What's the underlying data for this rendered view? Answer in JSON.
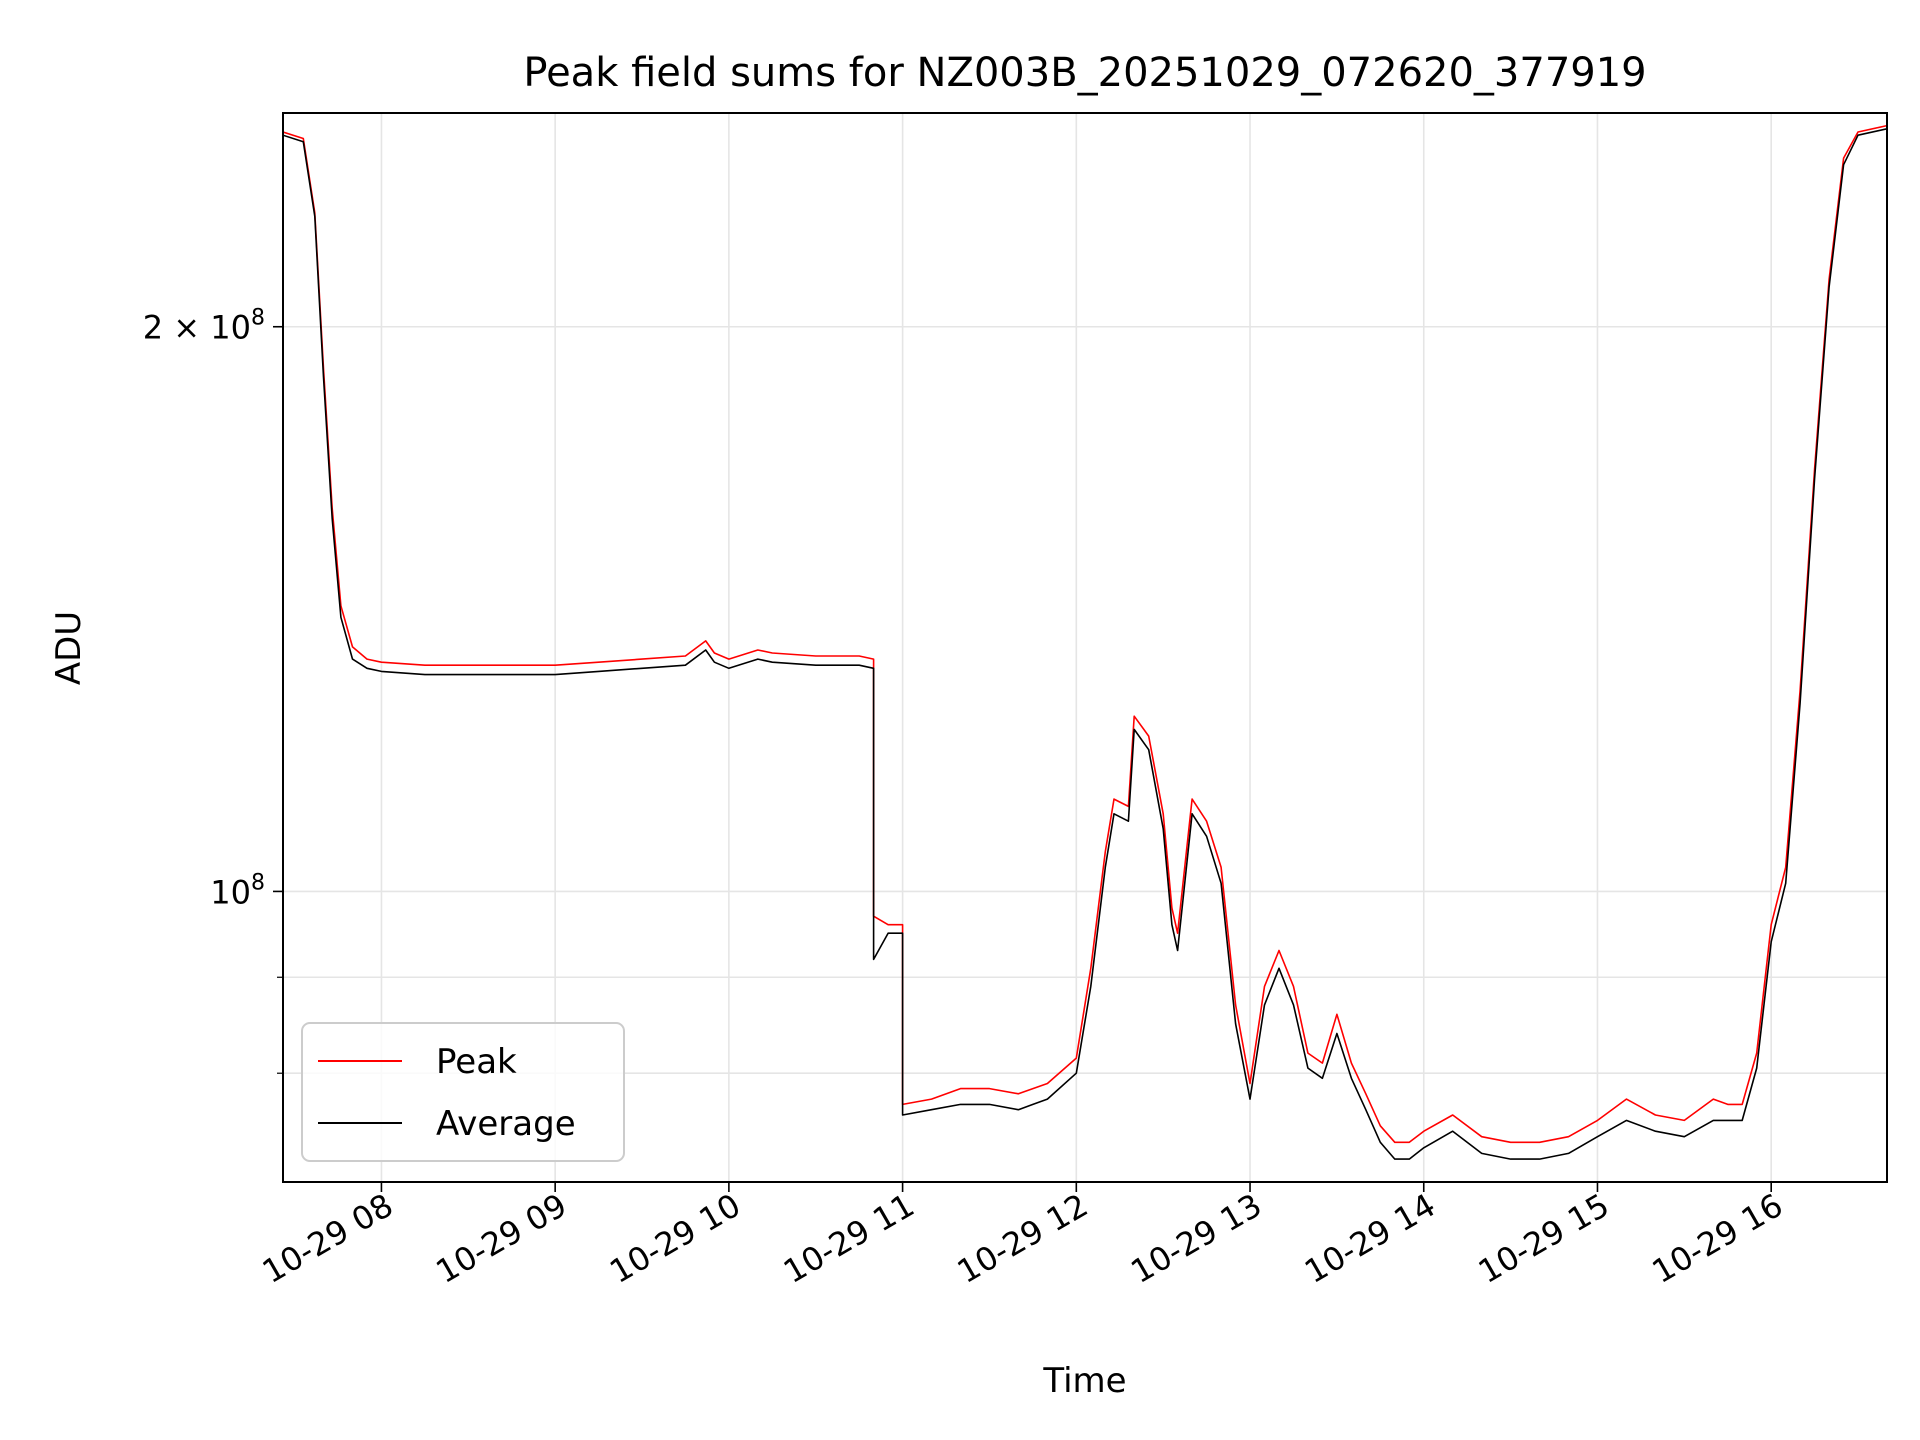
{
  "chart_data": {
    "type": "line",
    "title": "Peak field sums for NZ003B_20251029_072620_377919",
    "xlabel": "Time",
    "ylabel": "ADU",
    "x_tick_labels": [
      "10-29 08",
      "10-29 09",
      "10-29 10",
      "10-29 11",
      "10-29 12",
      "10-29 13",
      "10-29 14",
      "10-29 15",
      "10-29 16"
    ],
    "xlim": [
      "2025-10-29 07:26",
      "2025-10-29 16:40"
    ],
    "y_scale": "log",
    "ylim": [
      70000000,
      260000000
    ],
    "y_tick_labels": [
      {
        "value": 100000000,
        "mantissa": "",
        "base": "10",
        "exp": "8"
      },
      {
        "value": 200000000,
        "mantissa": "2 × ",
        "base": "10",
        "exp": "8"
      }
    ],
    "y_minor_ticks": [
      80000000,
      90000000
    ],
    "grid": true,
    "legend_position": "lower-left",
    "series": [
      {
        "name": "Peak",
        "color": "#ff0000",
        "x": [
          "07:26",
          "07:33",
          "07:37",
          "07:40",
          "07:43",
          "07:46",
          "07:50",
          "07:55",
          "08:00",
          "08:15",
          "08:30",
          "08:45",
          "09:00",
          "09:15",
          "09:30",
          "09:45",
          "09:52",
          "09:55",
          "10:00",
          "10:10",
          "10:15",
          "10:30",
          "10:45",
          "10:50",
          "10:50",
          "10:55",
          "11:00",
          "11:00",
          "11:10",
          "11:20",
          "11:30",
          "11:40",
          "11:45",
          "11:50",
          "12:00",
          "12:05",
          "12:10",
          "12:13",
          "12:18",
          "12:20",
          "12:25",
          "12:30",
          "12:33",
          "12:35",
          "12:40",
          "12:45",
          "12:50",
          "12:55",
          "13:00",
          "13:05",
          "13:10",
          "13:15",
          "13:20",
          "13:25",
          "13:30",
          "13:35",
          "13:40",
          "13:45",
          "13:50",
          "13:55",
          "14:00",
          "14:10",
          "14:20",
          "14:30",
          "14:40",
          "14:50",
          "15:00",
          "15:10",
          "15:20",
          "15:30",
          "15:40",
          "15:45",
          "15:50",
          "15:55",
          "16:00",
          "16:05",
          "16:10",
          "16:15",
          "16:20",
          "16:25",
          "16:30",
          "16:40"
        ],
        "y": [
          254000000,
          252000000,
          230000000,
          190000000,
          160000000,
          142000000,
          135000000,
          133000000,
          132500000,
          132000000,
          132000000,
          132000000,
          132000000,
          132500000,
          133000000,
          133500000,
          136000000,
          134000000,
          133000000,
          134500000,
          134000000,
          133500000,
          133500000,
          133000000,
          97000000,
          96000000,
          96000000,
          77000000,
          77500000,
          78500000,
          78500000,
          78000000,
          78500000,
          79000000,
          81500000,
          91000000,
          105000000,
          112000000,
          111000000,
          124000000,
          121000000,
          110000000,
          98000000,
          95000000,
          112000000,
          109000000,
          103000000,
          87000000,
          79000000,
          89000000,
          93000000,
          89000000,
          82000000,
          81000000,
          86000000,
          81000000,
          78000000,
          75000000,
          73500000,
          73500000,
          74500000,
          76000000,
          74000000,
          73500000,
          73500000,
          74000000,
          75500000,
          77500000,
          76000000,
          75500000,
          77500000,
          77000000,
          77000000,
          82000000,
          96000000,
          103000000,
          128000000,
          168000000,
          212000000,
          246000000,
          254000000,
          256000000
        ]
      },
      {
        "name": "Average",
        "color": "#000000",
        "x": [
          "07:26",
          "07:33",
          "07:37",
          "07:40",
          "07:43",
          "07:46",
          "07:50",
          "07:55",
          "08:00",
          "08:15",
          "08:30",
          "08:45",
          "09:00",
          "09:15",
          "09:30",
          "09:45",
          "09:52",
          "09:55",
          "10:00",
          "10:10",
          "10:15",
          "10:30",
          "10:45",
          "10:50",
          "10:50",
          "10:55",
          "11:00",
          "11:00",
          "11:10",
          "11:20",
          "11:30",
          "11:40",
          "11:45",
          "11:50",
          "12:00",
          "12:05",
          "12:10",
          "12:13",
          "12:18",
          "12:20",
          "12:25",
          "12:30",
          "12:33",
          "12:35",
          "12:40",
          "12:45",
          "12:50",
          "12:55",
          "13:00",
          "13:05",
          "13:10",
          "13:15",
          "13:20",
          "13:25",
          "13:30",
          "13:35",
          "13:40",
          "13:45",
          "13:50",
          "13:55",
          "14:00",
          "14:10",
          "14:20",
          "14:30",
          "14:40",
          "14:50",
          "15:00",
          "15:10",
          "15:20",
          "15:30",
          "15:40",
          "15:45",
          "15:50",
          "15:55",
          "16:00",
          "16:05",
          "16:10",
          "16:15",
          "16:20",
          "16:25",
          "16:30",
          "16:40"
        ],
        "y": [
          253000000,
          251000000,
          229000000,
          188000000,
          158000000,
          140000000,
          133000000,
          131500000,
          131000000,
          130500000,
          130500000,
          130500000,
          130500000,
          131000000,
          131500000,
          132000000,
          134500000,
          132500000,
          131500000,
          133000000,
          132500000,
          132000000,
          132000000,
          131500000,
          92000000,
          95000000,
          95000000,
          76000000,
          76500000,
          77000000,
          77000000,
          76500000,
          77000000,
          77500000,
          80000000,
          89000000,
          103000000,
          110000000,
          109000000,
          122000000,
          119000000,
          108000000,
          96000000,
          93000000,
          110000000,
          107000000,
          101000000,
          85000000,
          77500000,
          87000000,
          91000000,
          87000000,
          80500000,
          79500000,
          84000000,
          79500000,
          76500000,
          73500000,
          72000000,
          72000000,
          73000000,
          74500000,
          72500000,
          72000000,
          72000000,
          72500000,
          74000000,
          75500000,
          74500000,
          74000000,
          75500000,
          75500000,
          75500000,
          80500000,
          94000000,
          101000000,
          126000000,
          166000000,
          210000000,
          244000000,
          253000000,
          255000000
        ]
      }
    ]
  }
}
